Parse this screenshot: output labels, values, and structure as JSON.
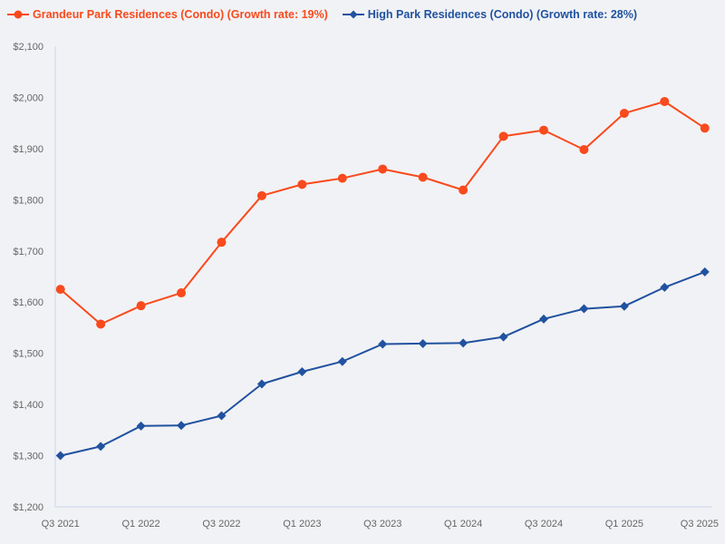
{
  "page": {
    "background_color": "#f1f2f5",
    "axis_color": "#ccd6eb",
    "tick_label_color": "#666666"
  },
  "legend": {
    "items": [
      {
        "label": "Grandeur Park Residences (Condo) (Growth rate: 19%)",
        "color": "#f94a1d",
        "marker": "circle"
      },
      {
        "label": "High Park Residences (Condo) (Growth rate: 28%)",
        "color": "#2152a0",
        "marker": "diamond"
      }
    ]
  },
  "chart_data": {
    "type": "line",
    "title": "",
    "xlabel": "",
    "ylabel": "",
    "grid": false,
    "legend_position": "top-left",
    "x": [
      "Q3 2021",
      "Q4 2021",
      "Q1 2022",
      "Q2 2022",
      "Q3 2022",
      "Q4 2022",
      "Q1 2023",
      "Q2 2023",
      "Q3 2023",
      "Q4 2023",
      "Q1 2024",
      "Q2 2024",
      "Q3 2024",
      "Q4 2024",
      "Q1 2025",
      "Q2 2025",
      "Q3 2025"
    ],
    "x_tick_labels": [
      "Q3 2021",
      "Q1 2022",
      "Q3 2022",
      "Q1 2023",
      "Q3 2023",
      "Q1 2024",
      "Q3 2024",
      "Q1 2025",
      "Q3 2025"
    ],
    "ylim": [
      1200,
      2100
    ],
    "y_ticks": [
      1200,
      1300,
      1400,
      1500,
      1600,
      1700,
      1800,
      1900,
      2000,
      2100
    ],
    "y_tick_labels": [
      "$1,200",
      "$1,300",
      "$1,400",
      "$1,500",
      "$1,600",
      "$1,700",
      "$1,800",
      "$1,900",
      "$2,000",
      "$2,100"
    ],
    "series": [
      {
        "name": "Grandeur Park Residences (Condo)",
        "growth_rate": "19%",
        "color": "#f94a1d",
        "marker": "circle",
        "values": [
          1625,
          1557,
          1593,
          1618,
          1717,
          1808,
          1830,
          1842,
          1860,
          1844,
          1819,
          1924,
          1936,
          1898,
          1969,
          1992,
          1940
        ]
      },
      {
        "name": "High Park Residences (Condo)",
        "growth_rate": "28%",
        "color": "#2152a0",
        "marker": "diamond",
        "values": [
          1300,
          1318,
          1358,
          1359,
          1378,
          1440,
          1464,
          1484,
          1518,
          1519,
          1520,
          1532,
          1567,
          1587,
          1592,
          1629,
          1659
        ]
      }
    ]
  }
}
